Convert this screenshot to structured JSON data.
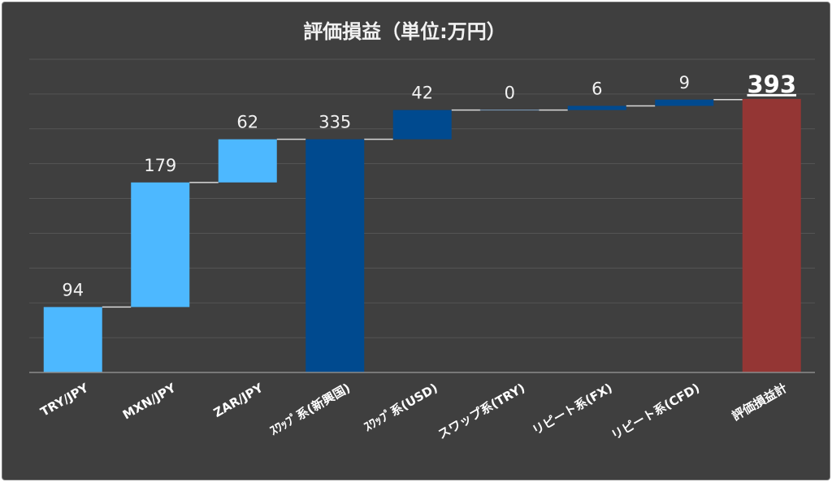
{
  "chart_data": {
    "type": "waterfall",
    "title": "評価損益（単位:万円）",
    "categories": [
      "TRY/JPY",
      "MXN/JPY",
      "ZAR/JPY",
      "ｽﾜｯﾌﾟ系(新興国)",
      "ｽﾜｯﾌﾟ系(USD)",
      "スワップ系(TRY)",
      "リピート系(FX)",
      "リピート系(CFD)",
      "評価損益計"
    ],
    "values": [
      94,
      179,
      62,
      335,
      42,
      0,
      6,
      9,
      393
    ],
    "bar_kind": [
      "increase",
      "increase",
      "increase",
      "subtotal",
      "increase",
      "increase",
      "increase",
      "increase",
      "total"
    ],
    "ylim": [
      0,
      450
    ],
    "grid": true,
    "legend": "none",
    "colors": {
      "background": "#3f3f3f",
      "increase_light": "#4db8ff",
      "increase_dark": "#004a8f",
      "subtotal": "#004a8f",
      "total": "#943634",
      "connector": "#d9d9d9",
      "grid": "#555555"
    }
  }
}
